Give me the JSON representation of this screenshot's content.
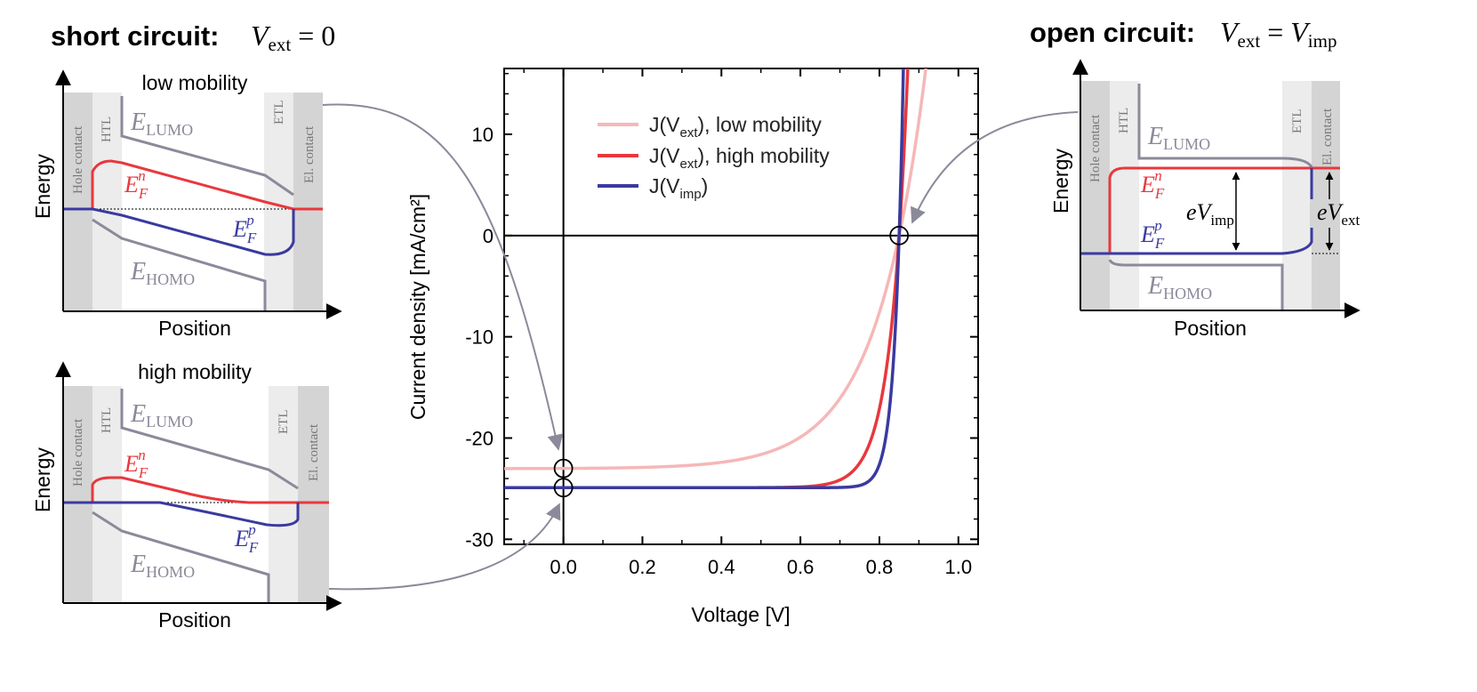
{
  "headers": {
    "short_circuit": {
      "label": "short circuit:",
      "formula": "V",
      "sub": "ext",
      "rhs": " = 0"
    },
    "open_circuit": {
      "label": "open circuit:",
      "formula": "V",
      "sub": "ext",
      "eq": " = ",
      "rhs": "V",
      "rhs_sub": "imp"
    }
  },
  "band_diagrams": {
    "low_mobility": {
      "title": "low mobility",
      "xlabel": "Position",
      "ylabel": "Energy"
    },
    "high_mobility": {
      "title": "high mobility",
      "xlabel": "Position",
      "ylabel": "Energy"
    },
    "open_circuit": {
      "xlabel": "Position",
      "ylabel": "Energy"
    },
    "layers": {
      "hole_contact": "Hole contact",
      "htl": "HTL",
      "etl": "ETL",
      "el_contact": "El. contact"
    },
    "levels": {
      "lumo": {
        "main": "E",
        "sub": "LUMO"
      },
      "homo": {
        "main": "E",
        "sub": "HOMO"
      },
      "fermi_n": {
        "main": "E",
        "sub": "F",
        "sup": "n"
      },
      "fermi_p": {
        "main": "E",
        "sub": "F",
        "sup": "p"
      }
    },
    "voltages": {
      "imp": {
        "prefix": "eV",
        "sub": "imp"
      },
      "ext": {
        "prefix": "eV",
        "sub": "ext"
      }
    }
  },
  "chart_data": {
    "type": "line",
    "xlabel": "Voltage [V]",
    "ylabel": "Current density [mA/cm²]",
    "xlim": [
      -0.15,
      1.05
    ],
    "ylim": [
      -30.5,
      16.5
    ],
    "xticks": [
      0.0,
      0.2,
      0.4,
      0.6,
      0.8,
      1.0
    ],
    "xtick_labels": [
      "0.0",
      "0.2",
      "0.4",
      "0.6",
      "0.8",
      "1.0"
    ],
    "yticks": [
      -30,
      -20,
      -10,
      0,
      10
    ],
    "ytick_labels": [
      "-30",
      "-20",
      "-10",
      "0",
      "10"
    ],
    "series": [
      {
        "name": "J(Vext), low mobility",
        "legend_main": "J(V",
        "legend_sub": "ext",
        "legend_tail": "), low mobility",
        "color": "#f6b7b7",
        "jsc": -23.0,
        "voc": 0.85,
        "m": 0.125,
        "xmax": 0.995
      },
      {
        "name": "J(Vext), high mobility",
        "legend_main": "J(V",
        "legend_sub": "ext",
        "legend_tail": "), high mobility",
        "color": "#e8383d",
        "jsc": -24.9,
        "voc": 0.85,
        "m": 0.043,
        "xmax": 0.88
      },
      {
        "name": "J(Vimp)",
        "legend_main": "J(V",
        "legend_sub": "imp",
        "legend_tail": ")",
        "color": "#3a3aa0",
        "jsc": -24.9,
        "voc": 0.85,
        "m": 0.021,
        "xmax": 0.865
      }
    ],
    "markers": [
      {
        "name": "jsc-low-marker",
        "x": 0.0,
        "y": -23.0
      },
      {
        "name": "jsc-high-marker",
        "x": 0.0,
        "y": -24.9
      },
      {
        "name": "voc-marker",
        "x": 0.85,
        "y": 0.0
      }
    ],
    "legend_position": "upper-left"
  }
}
